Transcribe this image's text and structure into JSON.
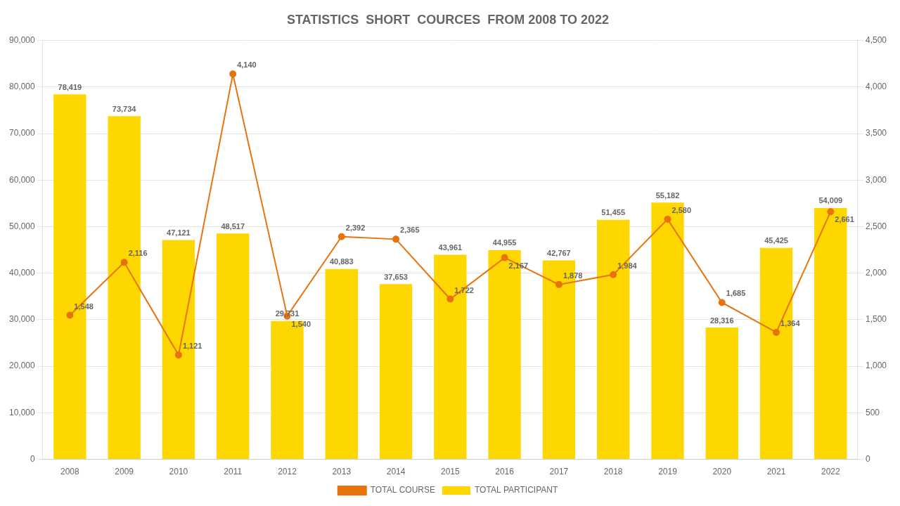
{
  "chart_data": {
    "type": "bar",
    "title": "STATISTICS  SHORT  COURCES  FROM 2008 TO 2022",
    "categories": [
      "2008",
      "2009",
      "2010",
      "2011",
      "2012",
      "2013",
      "2014",
      "2015",
      "2016",
      "2017",
      "2018",
      "2019",
      "2020",
      "2021",
      "2022"
    ],
    "series": [
      {
        "name": "TOTAL PARTICIPANT",
        "type": "bar",
        "color": "#FFD700",
        "values": [
          78419,
          73734,
          47121,
          48517,
          29731,
          40883,
          37653,
          43961,
          44955,
          42767,
          51455,
          55182,
          28316,
          45425,
          54009
        ],
        "value_labels": [
          "78,419",
          "73,734",
          "47,121",
          "48,517",
          "29,731",
          "40,883",
          "37,653",
          "43,961",
          "44,955",
          "42,767",
          "51,455",
          "55,182",
          "28,316",
          "45,425",
          "54,009"
        ]
      },
      {
        "name": "TOTAL COURSE",
        "type": "line",
        "color": "#E8720C",
        "marker": "circle",
        "axis": "y2",
        "values": [
          1548,
          2116,
          1121,
          4140,
          1540,
          2392,
          2365,
          1722,
          2167,
          1878,
          1984,
          2580,
          1685,
          1364,
          2661
        ],
        "value_labels": [
          "1,548",
          "2,116",
          "1,121",
          "4,140",
          "1,540",
          "2,392",
          "2,365",
          "1,722",
          "2,167",
          "1,878",
          "1,984",
          "2,580",
          "1,685",
          "1,364",
          "2,661"
        ]
      }
    ],
    "ylim": [
      0,
      90000
    ],
    "yticks": [
      0,
      {
        "value": 10000,
        "label": "10,000"
      },
      {
        "value": 20000,
        "label": "20,000"
      },
      {
        "value": 30000,
        "label": "30,000"
      },
      {
        "value": 40000,
        "label": "40,000"
      },
      {
        "value": 50000,
        "label": "50,000"
      },
      {
        "value": 60000,
        "label": "60,000"
      },
      {
        "value": 70000,
        "label": "70,000"
      },
      {
        "value": 80000,
        "label": "80,000"
      },
      {
        "value": 90000,
        "label": "90,000"
      }
    ],
    "y2lim": [
      0,
      4500
    ],
    "y2ticks": [
      0,
      500,
      {
        "value": 1000,
        "label": "1,000"
      },
      {
        "value": 1500,
        "label": "1,500"
      },
      {
        "value": 2000,
        "label": "2,000"
      },
      {
        "value": 2500,
        "label": "2,500"
      },
      {
        "value": 3000,
        "label": "3,000"
      },
      {
        "value": 3500,
        "label": "3,500"
      },
      {
        "value": 4000,
        "label": "4,000"
      },
      {
        "value": 4500,
        "label": "4,500"
      }
    ],
    "grid": true,
    "legend": "bottom",
    "data_labels": true
  }
}
